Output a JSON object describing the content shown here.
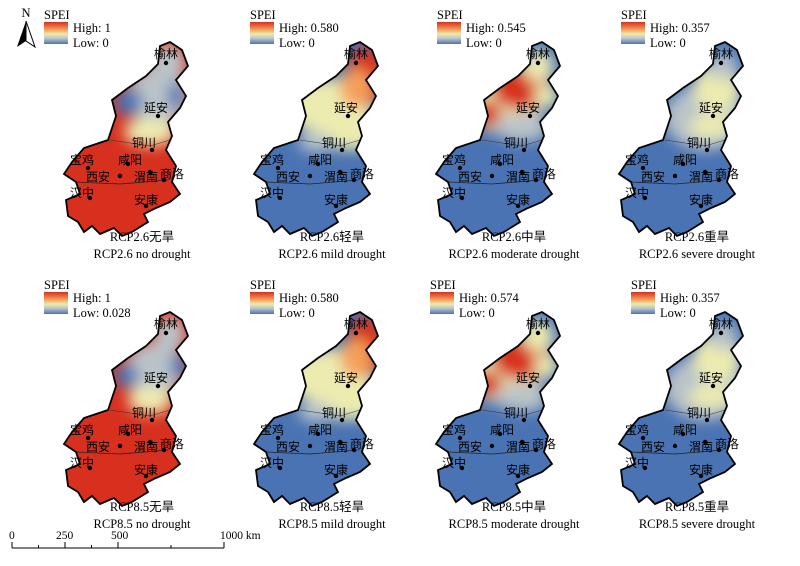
{
  "north_label": "N",
  "legend_title": "SPEI",
  "cities": [
    "榆林",
    "延安",
    "铜川",
    "宝鸡",
    "咸阳",
    "西安",
    "渭南",
    "商洛",
    "汉中",
    "安康"
  ],
  "panels": [
    {
      "high": "High: 1",
      "low": "Low: 0",
      "caption_cn": "RCP2.6无旱",
      "caption_en": "RCP2.6 no drought",
      "pattern": "none26"
    },
    {
      "high": "High: 0.580",
      "low": "Low: 0",
      "caption_cn": "RCP2.6轻旱",
      "caption_en": "RCP2.6 mild drought",
      "pattern": "mild"
    },
    {
      "high": "High: 0.545",
      "low": "Low: 0",
      "caption_cn": "RCP2.6中旱",
      "caption_en": "RCP2.6 moderate drought",
      "pattern": "moderate"
    },
    {
      "high": "High: 0.357",
      "low": "Low: 0",
      "caption_cn": "RCP2.6重旱",
      "caption_en": "RCP2.6 severe drought",
      "pattern": "severe"
    },
    {
      "high": "High: 1",
      "low": "Low: 0.028",
      "caption_cn": "RCP8.5无旱",
      "caption_en": "RCP8.5 no drought",
      "pattern": "none85"
    },
    {
      "high": "High: 0.580",
      "low": "Low: 0",
      "caption_cn": "RCP8.5轻旱",
      "caption_en": "RCP8.5 mild drought",
      "pattern": "mild"
    },
    {
      "high": "High: 0.574",
      "low": "Low: 0",
      "caption_cn": "RCP8.5中旱",
      "caption_en": "RCP8.5 moderate drought",
      "pattern": "moderate"
    },
    {
      "high": "High: 0.357",
      "low": "Low: 0",
      "caption_cn": "RCP8.5重旱",
      "caption_en": "RCP8.5 severe drought",
      "pattern": "severe"
    }
  ],
  "scale_bar": {
    "ticks": [
      "0",
      "250",
      "500",
      "1000 km"
    ]
  },
  "colors": {
    "red": "#d7301f",
    "orange": "#f4a05a",
    "yellow": "#ecebb0",
    "gray": "#b9c3c8",
    "blue": "#4a73b3",
    "border": "#000000"
  }
}
